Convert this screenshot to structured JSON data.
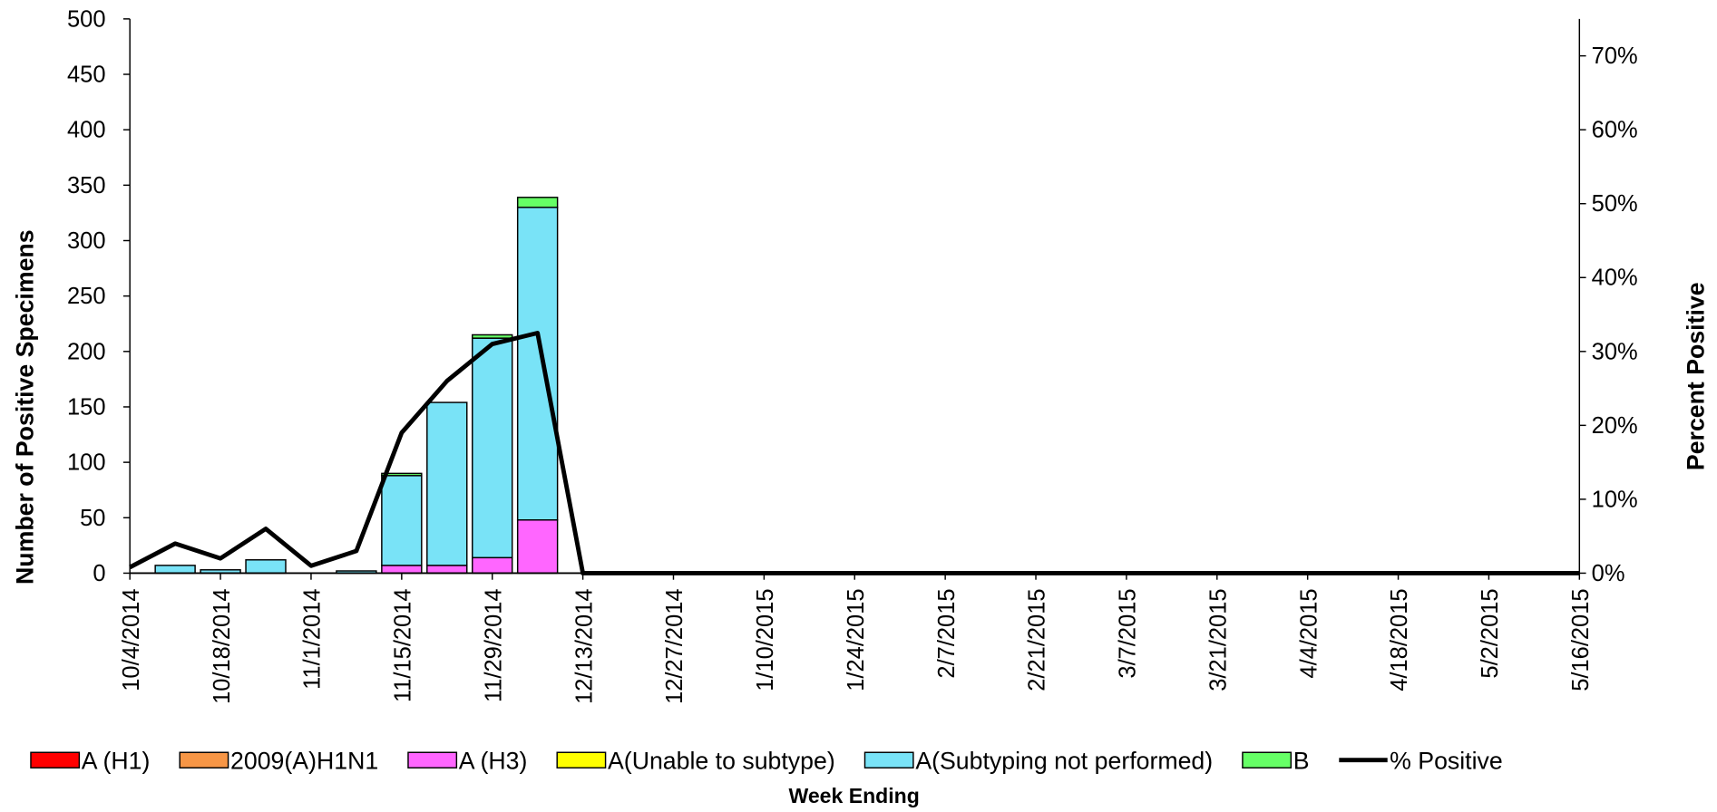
{
  "chart_data": {
    "type": "bar",
    "stacked": true,
    "x_label": "Week Ending",
    "y_label": "Number of  Positive Specimens",
    "y2_label": "Percent Positive",
    "categories": [
      "10/4/2014",
      null,
      "10/18/2014",
      null,
      "11/1/2014",
      null,
      "11/15/2014",
      null,
      "11/29/2014",
      null,
      "12/13/2014",
      null,
      "12/27/2014",
      null,
      "1/10/2015",
      null,
      "1/24/2015",
      null,
      "2/7/2015",
      null,
      "2/21/2015",
      null,
      "3/7/2015",
      null,
      "3/21/2015",
      null,
      "4/4/2015",
      null,
      "4/18/2015",
      null,
      "5/2/2015",
      null,
      "5/16/2015"
    ],
    "ylim": [
      0,
      500
    ],
    "yticks": [
      0,
      50,
      100,
      150,
      200,
      250,
      300,
      350,
      400,
      450,
      500
    ],
    "y2lim": [
      0,
      75
    ],
    "y2ticks": [
      {
        "value": 0,
        "label": "0%"
      },
      {
        "value": 10,
        "label": "10%"
      },
      {
        "value": 20,
        "label": "20%"
      },
      {
        "value": 30,
        "label": "30%"
      },
      {
        "value": 40,
        "label": "40%"
      },
      {
        "value": 50,
        "label": "50%"
      },
      {
        "value": 60,
        "label": "60%"
      },
      {
        "value": 70,
        "label": "70%"
      }
    ],
    "legend": "bottom",
    "series": [
      {
        "name": "A (H1)",
        "color": "#ff0000",
        "values": [
          0,
          0,
          0,
          0,
          0,
          0,
          0,
          0,
          0,
          0,
          0,
          0,
          0,
          0,
          0,
          0,
          0,
          0,
          0,
          0,
          0,
          0,
          0,
          0,
          0,
          0,
          0,
          0,
          0,
          0,
          0,
          0,
          0
        ]
      },
      {
        "name": "2009(A)H1N1",
        "color": "#f79646",
        "values": [
          0,
          0,
          0,
          0,
          0,
          0,
          0,
          0,
          0,
          0,
          0,
          0,
          0,
          0,
          0,
          0,
          0,
          0,
          0,
          0,
          0,
          0,
          0,
          0,
          0,
          0,
          0,
          0,
          0,
          0,
          0,
          0,
          0
        ]
      },
      {
        "name": "A (H3)",
        "color": "#ff66ff",
        "values": [
          0,
          0,
          0,
          0,
          0,
          0,
          7,
          7,
          14,
          48,
          0,
          0,
          0,
          0,
          0,
          0,
          0,
          0,
          0,
          0,
          0,
          0,
          0,
          0,
          0,
          0,
          0,
          0,
          0,
          0,
          0,
          0,
          0
        ]
      },
      {
        "name": "A(Unable to subtype)",
        "color": "#ffff00",
        "values": [
          0,
          0,
          0,
          0,
          0,
          0,
          0,
          0,
          0,
          0,
          0,
          0,
          0,
          0,
          0,
          0,
          0,
          0,
          0,
          0,
          0,
          0,
          0,
          0,
          0,
          0,
          0,
          0,
          0,
          0,
          0,
          0,
          0
        ]
      },
      {
        "name": "A(Subtyping not performed)",
        "color": "#79e3f7",
        "values": [
          0,
          7,
          3,
          12,
          0,
          2,
          81,
          147,
          198,
          282,
          0,
          0,
          0,
          0,
          0,
          0,
          0,
          0,
          0,
          0,
          0,
          0,
          0,
          0,
          0,
          0,
          0,
          0,
          0,
          0,
          0,
          0,
          0
        ]
      },
      {
        "name": "B",
        "color": "#66ff66",
        "values": [
          0,
          0,
          0,
          0,
          0,
          0,
          2,
          0,
          3,
          9,
          0,
          0,
          0,
          0,
          0,
          0,
          0,
          0,
          0,
          0,
          0,
          0,
          0,
          0,
          0,
          0,
          0,
          0,
          0,
          0,
          0,
          0,
          0
        ]
      },
      {
        "name": "% Positive",
        "color": "#000000",
        "type": "line",
        "axis": "y2",
        "values": [
          0.8,
          4,
          2,
          6,
          1,
          3,
          19,
          26,
          31,
          32.5,
          0,
          0,
          0,
          0,
          0,
          0,
          0,
          0,
          0,
          0,
          0,
          0,
          0,
          0,
          0,
          0,
          0,
          0,
          0,
          0,
          0,
          0,
          0
        ]
      }
    ]
  }
}
